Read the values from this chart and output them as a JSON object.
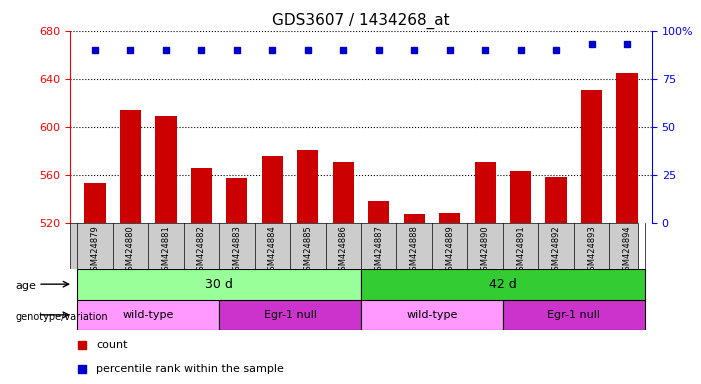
{
  "title": "GDS3607 / 1434268_at",
  "samples": [
    "GSM424879",
    "GSM424880",
    "GSM424881",
    "GSM424882",
    "GSM424883",
    "GSM424884",
    "GSM424885",
    "GSM424886",
    "GSM424887",
    "GSM424888",
    "GSM424889",
    "GSM424890",
    "GSM424891",
    "GSM424892",
    "GSM424893",
    "GSM424894"
  ],
  "counts": [
    553,
    614,
    609,
    566,
    557,
    576,
    581,
    571,
    538,
    527,
    528,
    571,
    563,
    558,
    631,
    645
  ],
  "percentile_ranks": [
    90,
    90,
    90,
    90,
    90,
    90,
    90,
    90,
    90,
    90,
    90,
    90,
    90,
    90,
    93,
    93
  ],
  "ylim_left": [
    520,
    680
  ],
  "ylim_right": [
    0,
    100
  ],
  "yticks_left": [
    520,
    560,
    600,
    640,
    680
  ],
  "yticks_right": [
    0,
    25,
    50,
    75,
    100
  ],
  "bar_color": "#cc0000",
  "dot_color": "#0000cc",
  "age_30d_color": "#99ff99",
  "age_42d_color": "#33cc33",
  "wt_color": "#ff99ff",
  "egr_color": "#cc33cc",
  "tick_label_area_color": "#cccccc"
}
